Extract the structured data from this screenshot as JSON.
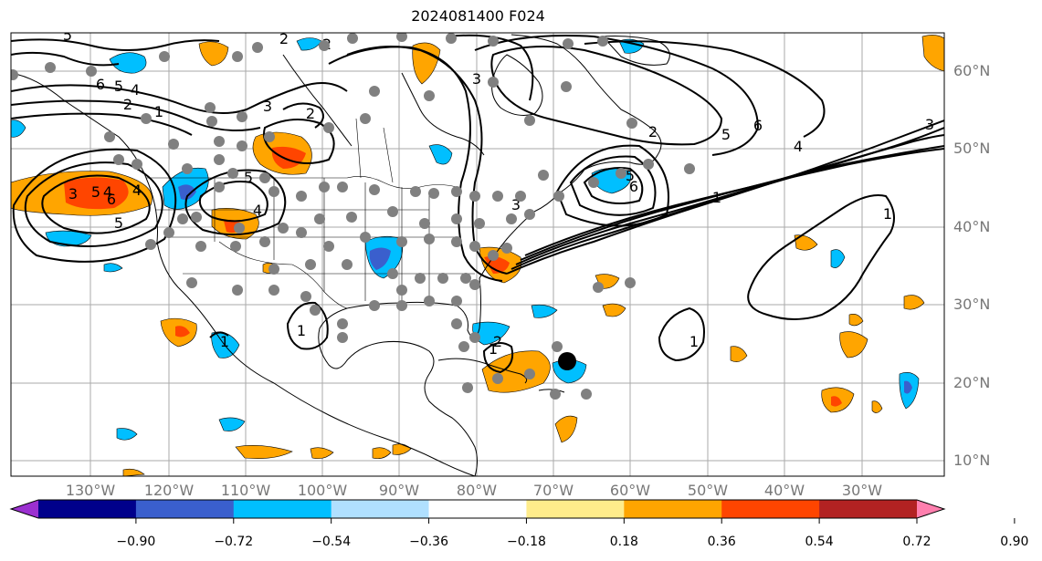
{
  "title": "2024081400 F024",
  "lon_labels": [
    "130°W",
    "120°W",
    "110°W",
    "100°W",
    "90°W",
    "80°W",
    "70°W",
    "60°W",
    "50°W",
    "40°W",
    "30°W"
  ],
  "lat_labels": [
    "60°N",
    "50°N",
    "40°N",
    "30°N",
    "20°N",
    "10°N"
  ],
  "colorbar": {
    "colors": [
      "#9b30d0",
      "#00008b",
      "#3a5fcd",
      "#00bfff",
      "#b0e0ff",
      "#ffffff",
      "#ffec8b",
      "#ffa500",
      "#ff4500",
      "#b22222",
      "#ff7fae"
    ],
    "ticks": [
      "−0.90",
      "−0.72",
      "−0.54",
      "−0.36",
      "−0.18",
      "0.18",
      "0.36",
      "0.54",
      "0.72",
      "0.90"
    ]
  },
  "contour_labels": [
    "5",
    "2",
    "6",
    "5",
    "4",
    "2",
    "1",
    "3",
    "2",
    "5",
    "6",
    "5",
    "3",
    "4",
    "2",
    "3",
    "1",
    "2",
    "5",
    "6",
    "4",
    "3",
    "1",
    "2",
    "1",
    "3",
    "5",
    "4",
    "6",
    "5",
    "4",
    "1",
    "1",
    "1"
  ],
  "colors": {
    "grid": "#aaaaaa",
    "station": "#808080",
    "contour": "#000000"
  }
}
